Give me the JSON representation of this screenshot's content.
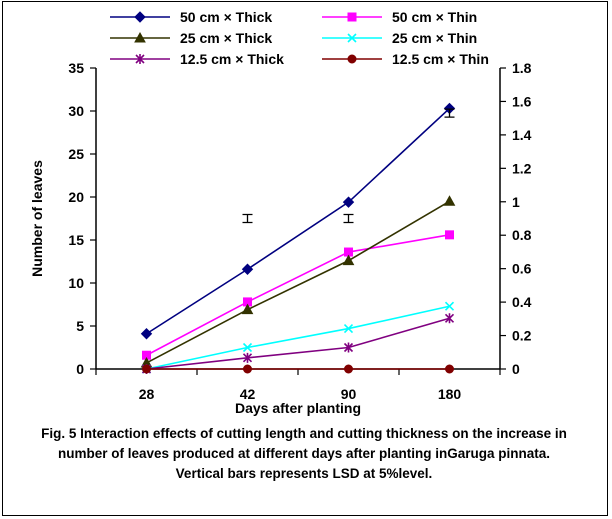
{
  "chart_data": {
    "type": "line",
    "categories": [
      "28",
      "42",
      "90",
      "180"
    ],
    "xlabel": "Days after planting",
    "ylabel": "Number of leaves",
    "ylim": [
      0,
      35
    ],
    "y_ticks": [
      "0",
      "5",
      "10",
      "15",
      "20",
      "25",
      "30",
      "35"
    ],
    "y2lim": [
      0,
      1.8
    ],
    "y2_ticks": [
      "0",
      "0.2",
      "0.4",
      "0.6",
      "0.8",
      "1",
      "1.2",
      "1.4",
      "1.6",
      "1.8"
    ],
    "grid": false,
    "legend_position": "top",
    "series": [
      {
        "name": "50 cm  × Thick",
        "color": "#000080",
        "marker": "diamond",
        "values": [
          4.1,
          11.6,
          19.4,
          30.3
        ]
      },
      {
        "name": "50 cm × Thin",
        "color": "#ff00ff",
        "marker": "square",
        "values": [
          1.6,
          7.8,
          13.6,
          15.6
        ]
      },
      {
        "name": "25 cm × Thick",
        "color": "#333300",
        "marker": "triangle",
        "values": [
          0.7,
          6.9,
          12.6,
          19.5
        ]
      },
      {
        "name": "25  cm × Thin",
        "color": "#00ffff",
        "marker": "x",
        "values": [
          0.0,
          2.5,
          4.7,
          7.3
        ]
      },
      {
        "name": "12.5 cm × Thick",
        "color": "#800080",
        "marker": "star",
        "values": [
          0.0,
          1.3,
          2.5,
          5.9
        ]
      },
      {
        "name": "12.5 cm × Thin",
        "color": "#800000",
        "marker": "circle",
        "values": [
          0,
          0,
          0,
          0
        ]
      }
    ],
    "lsd_bars": [
      {
        "category": "42",
        "value": 0.9
      },
      {
        "category": "90",
        "value": 0.9
      },
      {
        "category": "180",
        "value": 1.53
      }
    ]
  },
  "caption": "Fig. 5 Interaction effects of cutting length and cutting thickness on the increase in number of leaves produced at different days after planting inGaruga pinnata. Vertical bars represents LSD at 5%level."
}
